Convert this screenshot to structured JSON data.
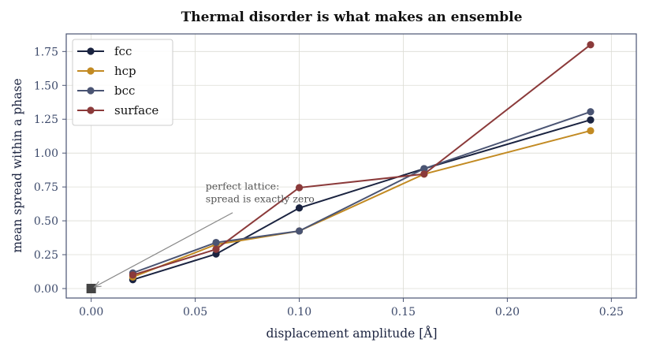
{
  "chart_data": {
    "type": "line",
    "title": "Thermal disorder is what makes an ensemble",
    "xlabel": "displacement amplitude  [Å]",
    "ylabel": "mean spread within a phase",
    "xlim": [
      -0.012,
      0.262
    ],
    "ylim": [
      -0.07,
      1.88
    ],
    "xticks": [
      0.0,
      0.05,
      0.1,
      0.15,
      0.2,
      0.25
    ],
    "xtick_labels": [
      "0.00",
      "0.05",
      "0.10",
      "0.15",
      "0.20",
      "0.25"
    ],
    "yticks": [
      0.0,
      0.25,
      0.5,
      0.75,
      1.0,
      1.25,
      1.5,
      1.75
    ],
    "ytick_labels": [
      "0.00",
      "0.25",
      "0.50",
      "0.75",
      "1.00",
      "1.25",
      "1.50",
      "1.75"
    ],
    "grid": true,
    "legend_position": "top-left",
    "series": [
      {
        "name": "fcc",
        "color": "#1a2340",
        "x": [
          0.02,
          0.06,
          0.1,
          0.16,
          0.24
        ],
        "y": [
          0.065,
          0.255,
          0.595,
          0.885,
          1.245
        ]
      },
      {
        "name": "hcp",
        "color": "#c28a22",
        "x": [
          0.02,
          0.06,
          0.1,
          0.16,
          0.24
        ],
        "y": [
          0.085,
          0.325,
          0.425,
          0.845,
          1.165
        ]
      },
      {
        "name": "bcc",
        "color": "#4a5473",
        "x": [
          0.02,
          0.06,
          0.1,
          0.16,
          0.24
        ],
        "y": [
          0.115,
          0.34,
          0.425,
          0.885,
          1.305
        ]
      },
      {
        "name": "surface",
        "color": "#8b3a3a",
        "x": [
          0.02,
          0.06,
          0.1,
          0.16,
          0.24
        ],
        "y": [
          0.1,
          0.29,
          0.745,
          0.845,
          1.8
        ]
      }
    ],
    "reference_point": {
      "x": 0.0,
      "y": 0.0,
      "color": "#444444"
    },
    "annotation": {
      "lines": [
        "perfect lattice:",
        "spread is exactly zero"
      ],
      "text_x": 0.055,
      "text_y": 0.73,
      "arrow_from_x": 0.068,
      "arrow_from_y": 0.56,
      "arrow_to_x": 0.0,
      "arrow_to_y": 0.0
    }
  }
}
